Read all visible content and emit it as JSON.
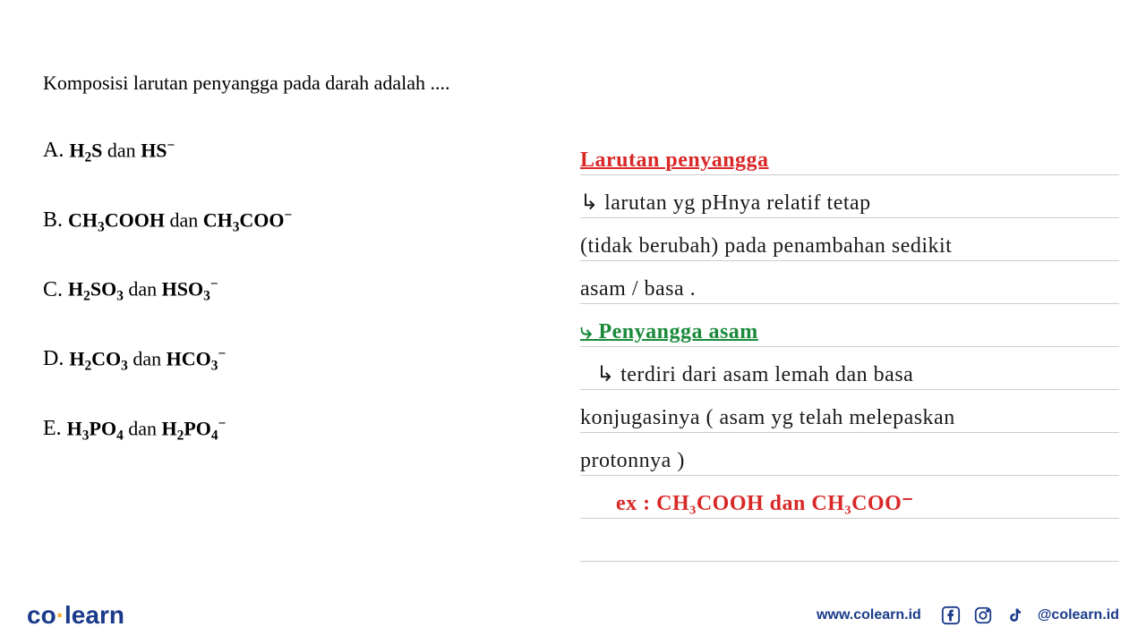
{
  "question": {
    "text": "Komposisi larutan penyangga pada darah adalah ....",
    "font_family": "Georgia, serif",
    "font_size": 22,
    "color": "#000000"
  },
  "options": [
    {
      "letter": "A.",
      "formula_html": "H<sub>2</sub>S <span class='conn'>dan</span> HS<sup>−</sup>"
    },
    {
      "letter": "B.",
      "formula_html": "CH<sub>3</sub>COOH <span class='conn'>dan</span> CH<sub>3</sub>COO<sup>−</sup>"
    },
    {
      "letter": "C.",
      "formula_html": "H<sub>2</sub>SO<sub>3</sub> <span class='conn'>dan</span> HSO<sub>3</sub><sup>−</sup>"
    },
    {
      "letter": "D.",
      "formula_html": "H<sub>2</sub>CO<sub>3</sub> <span class='conn'>dan</span> HCO<sub>3</sub><sup>−</sup>"
    },
    {
      "letter": "E.",
      "formula_html": "H<sub>3</sub>PO<sub>4</sub> <span class='conn'>dan</span> H<sub>2</sub>PO<sub>4</sub><sup>−</sup>"
    }
  ],
  "notes": {
    "line_color": "#cccccc",
    "line_height": 48,
    "font_family": "Comic Sans MS, cursive",
    "font_size": 24,
    "colors": {
      "red": "#d92828",
      "black": "#1a1a1a",
      "green": "#1a8a3a"
    },
    "lines": [
      {
        "segments": [
          {
            "text": "Larutan penyangga",
            "class": "hw-red hw-title"
          }
        ],
        "indent": ""
      },
      {
        "segments": [
          {
            "text": "↳ larutan yg pHnya relatif tetap",
            "class": "hw-black"
          }
        ],
        "indent": ""
      },
      {
        "segments": [
          {
            "text": "(tidak berubah) pada penambahan sedikit",
            "class": "hw-black"
          }
        ],
        "indent": ""
      },
      {
        "segments": [
          {
            "text": "asam / basa .",
            "class": "hw-black"
          }
        ],
        "indent": ""
      },
      {
        "segments": [
          {
            "text": "⤷ Penyangga  asam",
            "class": "hw-green hw-title"
          }
        ],
        "indent": ""
      },
      {
        "segments": [
          {
            "text": "↳ terdiri dari  asam lemah  dan basa",
            "class": "hw-black"
          }
        ],
        "indent": "indent"
      },
      {
        "segments": [
          {
            "text": "konjugasinya ( asam yg telah melepaskan",
            "class": "hw-black"
          }
        ],
        "indent": ""
      },
      {
        "segments": [
          {
            "text": "protonnya )",
            "class": "hw-black"
          }
        ],
        "indent": ""
      },
      {
        "segments": [
          {
            "text": "ex :  CH₃COOH  dan  CH₃COO⁻",
            "class": "hw-red"
          }
        ],
        "indent": "indent2"
      },
      {
        "segments": [],
        "indent": ""
      }
    ]
  },
  "footer": {
    "logo_co": "co",
    "logo_learn": "learn",
    "url": "www.colearn.id",
    "handle": "@colearn.id",
    "brand_color": "#1a3a8a",
    "accent_color": "#f5a623"
  }
}
